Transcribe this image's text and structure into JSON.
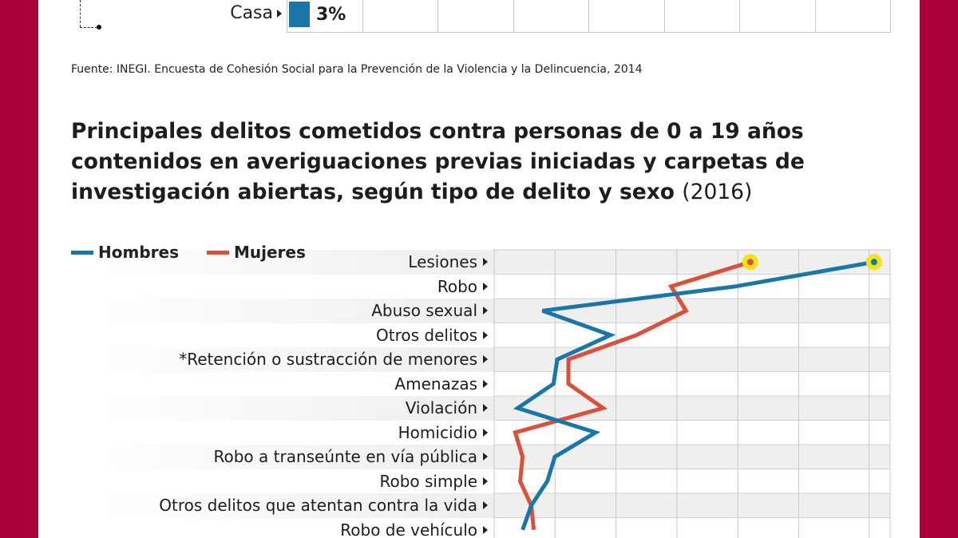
{
  "top_chart": {
    "row_label": "Casa",
    "value_label": "3%",
    "bar_color": "#1a75a8"
  },
  "source": "Fuente: INEGI. Encuesta de Cohesión Social para la Prevención de la Violencia y la Delincuencia, 2014",
  "title": {
    "main": "Principales delitos cometidos contra personas de 0 a 19 años contenidos en averiguaciones previas iniciadas y carpetas de investigación abiertas, según tipo de delito y sexo",
    "year": "(2016)"
  },
  "colors": {
    "background": "#a8003a",
    "hombres": "#1a75a8",
    "mujeres": "#d9503b",
    "highlight": "#f2e21a",
    "band": "#efefed",
    "grid": "#c8c8c8"
  },
  "chart_data": {
    "type": "line",
    "orientation": "horizontal-categories",
    "categories": [
      "Lesiones",
      "Robo",
      "Abuso sexual",
      "Otros delitos",
      "*Retención o sustracción de menores",
      "Amenazas",
      "Violación",
      "Homicidio",
      "Robo a transeúnte en vía pública",
      "Robo simple",
      "Otros delitos que atentan contra la vida",
      "Robo de vehículo"
    ],
    "series": [
      {
        "name": "Hombres",
        "color": "#1a75a8",
        "values": [
          30.7,
          19.5,
          3.9,
          9.4,
          5.1,
          4.8,
          1.9,
          8.2,
          4.9,
          4.3,
          3.0,
          2.3
        ]
      },
      {
        "name": "Mujeres",
        "color": "#d9503b",
        "values": [
          20.7,
          14.3,
          15.5,
          11.5,
          6.0,
          6.0,
          8.8,
          1.7,
          2.3,
          2.1,
          3.0,
          3.2
        ]
      }
    ],
    "xlim": [
      0,
      32
    ],
    "grid": true,
    "legend": "top-left",
    "highlight_max": true
  }
}
